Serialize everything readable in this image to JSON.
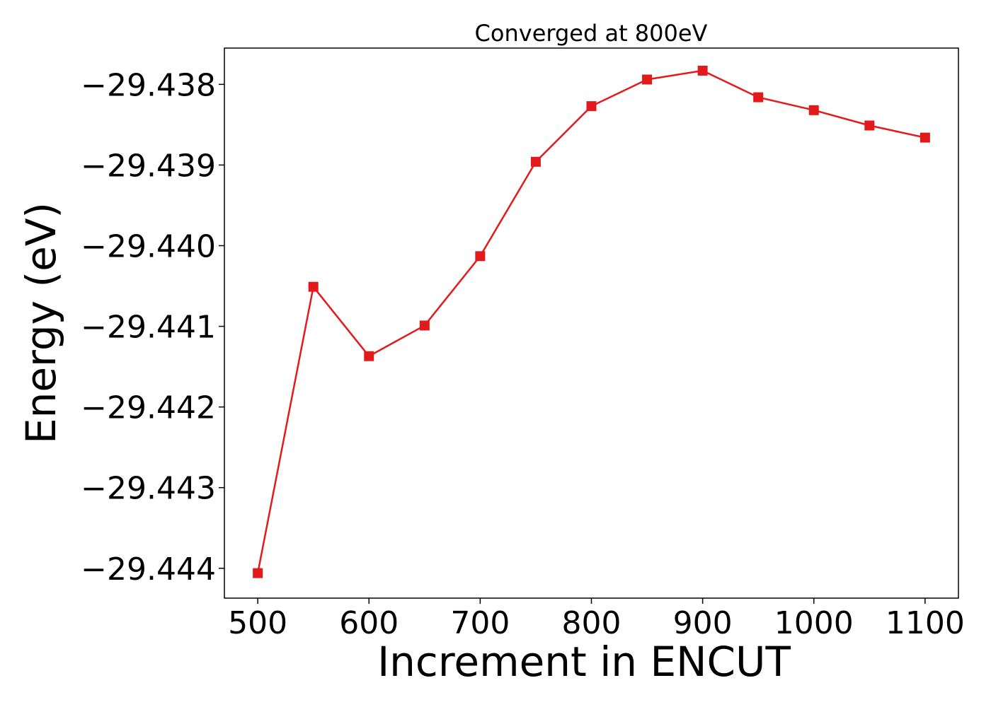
{
  "chart_data": {
    "type": "line",
    "title": "Converged at 800eV",
    "xlabel": "Increment in ENCUT",
    "ylabel": "Energy (eV)",
    "x": [
      500,
      550,
      600,
      650,
      700,
      750,
      800,
      850,
      900,
      950,
      1000,
      1050,
      1100
    ],
    "series": [
      {
        "values": [
          -29.44406,
          -29.44051,
          -29.44137,
          -29.44099,
          -29.44013,
          -29.43896,
          -29.43827,
          -29.43794,
          -29.43783,
          -29.43816,
          -29.43832,
          -29.43851,
          -29.43866
        ],
        "color": "#e31a1c",
        "marker": "square"
      }
    ],
    "xlim": [
      470,
      1130
    ],
    "ylim": [
      -29.44437,
      -29.43755
    ],
    "xticks": [
      500,
      600,
      700,
      800,
      900,
      1000,
      1100
    ],
    "xtick_labels": [
      "500",
      "600",
      "700",
      "800",
      "900",
      "1000",
      "1100"
    ],
    "yticks": [
      -29.438,
      -29.439,
      -29.44,
      -29.441,
      -29.442,
      -29.443,
      -29.444
    ],
    "ytick_labels": [
      "−29.438",
      "−29.439",
      "−29.440",
      "−29.441",
      "−29.442",
      "−29.443",
      "−29.444"
    ],
    "grid": false,
    "legend": "none"
  }
}
